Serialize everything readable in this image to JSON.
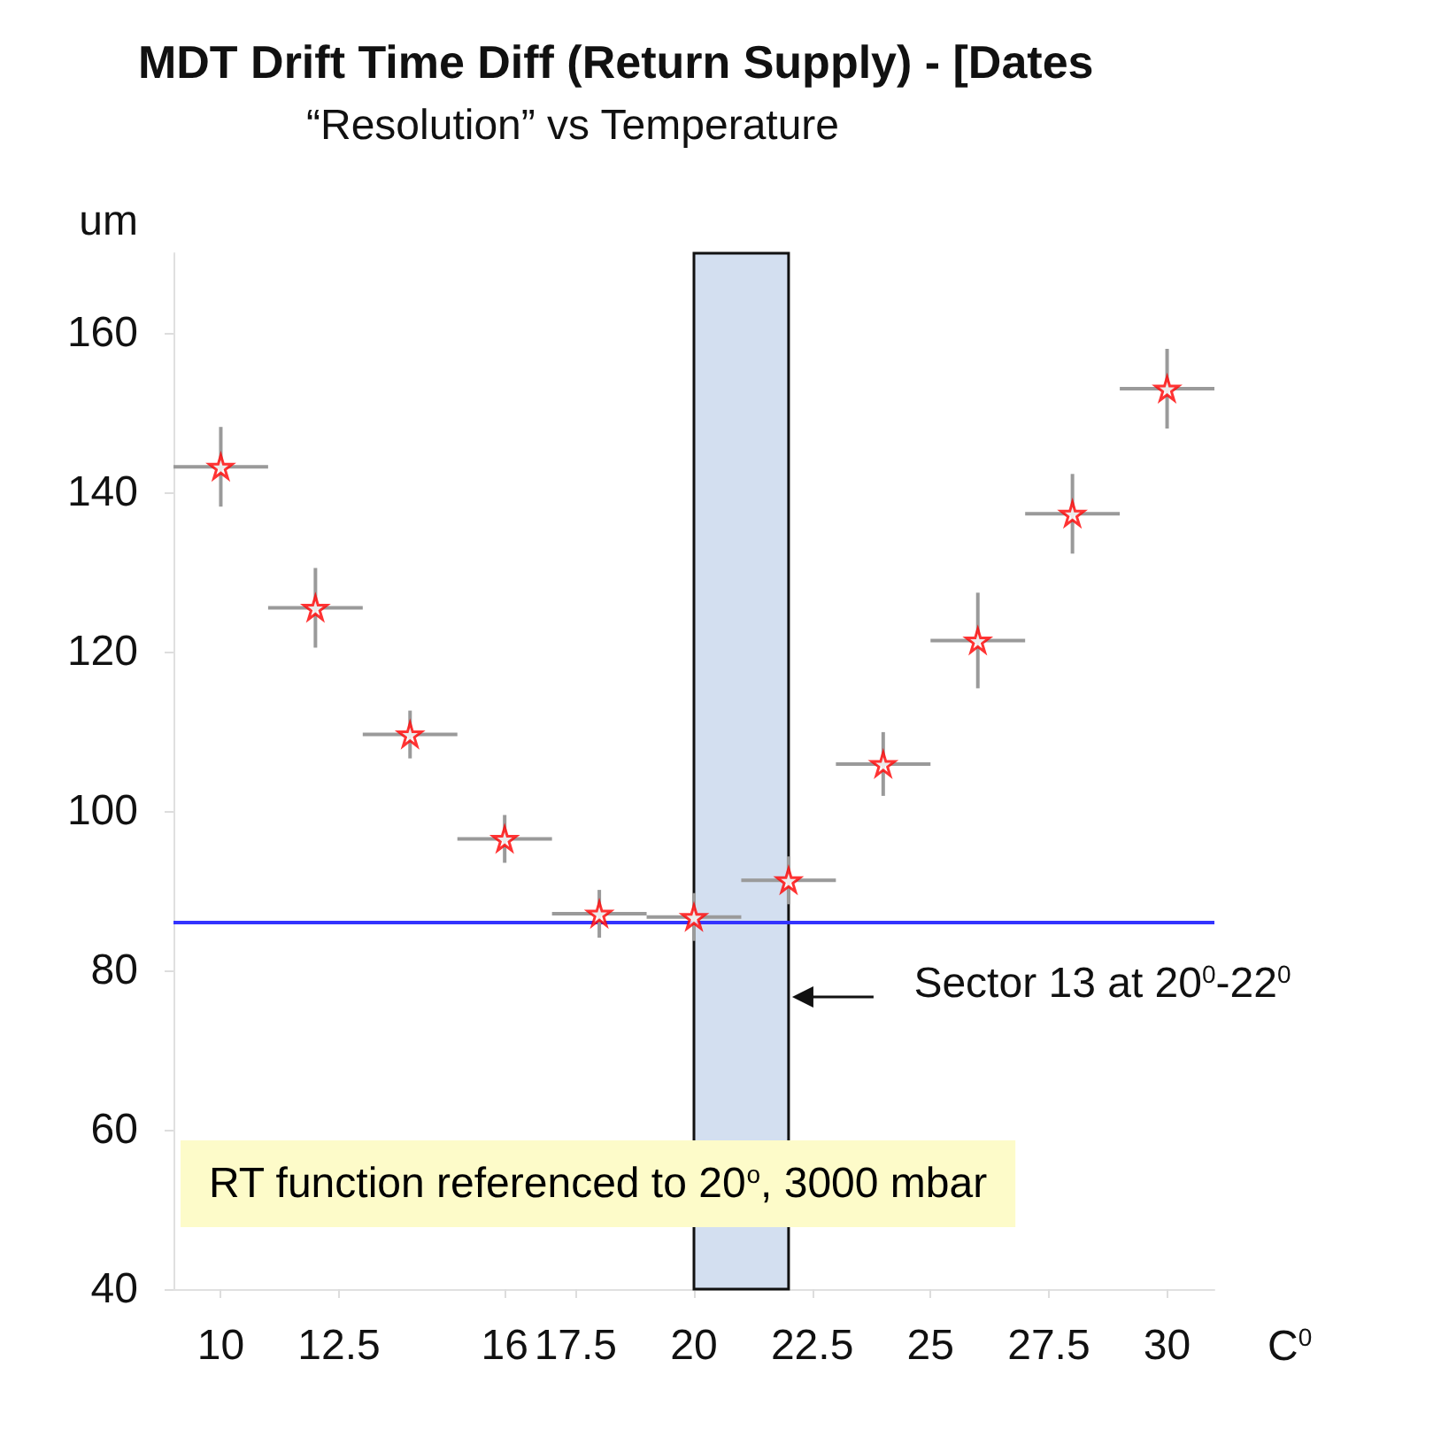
{
  "chart_data": {
    "type": "scatter",
    "title": "“Resolution” vs Temperature",
    "ylabel": "um",
    "xlabel": "C$^{0}$",
    "x": [
      10,
      12,
      14,
      16,
      18,
      20,
      22,
      24,
      26,
      28,
      30
    ],
    "series": [
      {
        "color": "#ff0000",
        "values": [
          143.2,
          125.5,
          109.6,
          96.5,
          87.1,
          86.7,
          91.3,
          105.9,
          121.4,
          137.3,
          153
        ],
        "errors": [
          5,
          5,
          3,
          3,
          3,
          3,
          3,
          4,
          6,
          5,
          5
        ],
        "xerrors": [
          1,
          1,
          1,
          1,
          1,
          1,
          1,
          1,
          1,
          1,
          1
        ]
      }
    ],
    "marker": "star",
    "xlim": [
      9,
      31
    ],
    "xticks": [
      10,
      12.5,
      16,
      17.5,
      20,
      22.5,
      25,
      27.5,
      30
    ],
    "ylim": [
      40,
      170
    ],
    "yticks": [
      40,
      60,
      80,
      100,
      120,
      140,
      160
    ],
    "ref_lines": [
      {
        "axis": "y",
        "value": 86,
        "color": "#3333ff"
      }
    ],
    "bands": [
      {
        "axis": "x",
        "from": 20,
        "to": 22,
        "label": "Sector 13 at 20$^{0}$-22$^{0}$",
        "color": "#d3dff0"
      }
    ],
    "annotations": [
      "MDT Drift Time Diff (Return Supply) - [Dates",
      "RT function referenced to 20$^{o}$, 3000 mbar"
    ],
    "grid": false
  }
}
